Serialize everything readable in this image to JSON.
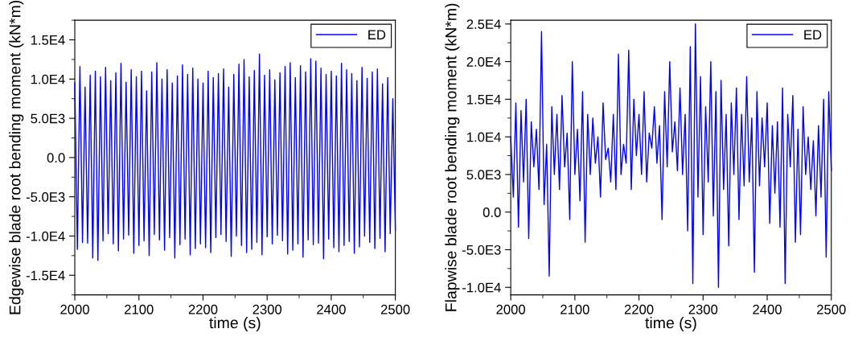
{
  "chart_data": [
    {
      "type": "line",
      "xlabel": "time (s)",
      "ylabel": "Edgewise blade root bending moment (kN*m)",
      "xlim": [
        2000,
        2500
      ],
      "xticks": [
        2000,
        2100,
        2200,
        2300,
        2400,
        2500
      ],
      "ylim": [
        -17500,
        17500
      ],
      "yticks": [
        {
          "value": -15000,
          "label": "-1.5E4"
        },
        {
          "value": -10000,
          "label": "-1.0E4"
        },
        {
          "value": -5000,
          "label": "-5.0E3"
        },
        {
          "value": 0,
          "label": "0.0"
        },
        {
          "value": 5000,
          "label": "5.0E3"
        },
        {
          "value": 10000,
          "label": "1.0E4"
        },
        {
          "value": 15000,
          "label": "1.5E4"
        }
      ],
      "legend": "top right",
      "grid": false,
      "marker": "none",
      "line_style": "solid",
      "series": [
        {
          "name": "ED",
          "color": "#0000ff",
          "x": [
            2000,
            2004,
            2008,
            2012,
            2016,
            2020,
            2024,
            2028,
            2032,
            2036,
            2040,
            2044,
            2048,
            2052,
            2056,
            2060,
            2064,
            2068,
            2072,
            2076,
            2080,
            2084,
            2088,
            2092,
            2096,
            2100,
            2104,
            2108,
            2112,
            2116,
            2120,
            2124,
            2128,
            2132,
            2136,
            2140,
            2144,
            2148,
            2152,
            2156,
            2160,
            2164,
            2168,
            2172,
            2176,
            2180,
            2184,
            2188,
            2192,
            2196,
            2200,
            2204,
            2208,
            2212,
            2216,
            2220,
            2224,
            2228,
            2232,
            2236,
            2240,
            2244,
            2248,
            2252,
            2256,
            2260,
            2264,
            2268,
            2272,
            2276,
            2280,
            2284,
            2288,
            2292,
            2296,
            2300,
            2304,
            2308,
            2312,
            2316,
            2320,
            2324,
            2328,
            2332,
            2336,
            2340,
            2344,
            2348,
            2352,
            2356,
            2360,
            2364,
            2368,
            2372,
            2376,
            2380,
            2384,
            2388,
            2392,
            2396,
            2400,
            2404,
            2408,
            2412,
            2416,
            2420,
            2424,
            2428,
            2432,
            2436,
            2440,
            2444,
            2448,
            2452,
            2456,
            2460,
            2464,
            2468,
            2472,
            2476,
            2480,
            2484,
            2488,
            2492,
            2496,
            2500
          ],
          "values": [
            9500,
            -11700,
            11600,
            -10800,
            9000,
            -10900,
            10500,
            -12800,
            11000,
            -13100,
            10300,
            -10600,
            11500,
            -9700,
            9800,
            -11000,
            10800,
            -11900,
            12000,
            -10400,
            9600,
            -9900,
            11200,
            -12200,
            10300,
            -11200,
            11000,
            -10600,
            8500,
            -12500,
            10900,
            -9800,
            12100,
            -10500,
            10000,
            -11800,
            11200,
            -10200,
            9500,
            -12800,
            10400,
            -11100,
            11800,
            -10400,
            10600,
            -12400,
            11400,
            -11600,
            10000,
            -11000,
            9500,
            -11500,
            11000,
            -12100,
            10200,
            -10200,
            10700,
            -9800,
            11300,
            -10700,
            9000,
            -12600,
            10600,
            -10000,
            11900,
            -11200,
            12500,
            -12100,
            10300,
            -11700,
            11100,
            -10800,
            13200,
            -12400,
            10500,
            -10100,
            11200,
            -11000,
            9900,
            -9900,
            10800,
            -10600,
            11600,
            -12300,
            12100,
            -11800,
            10200,
            -11000,
            11700,
            -12700,
            10900,
            -10500,
            12600,
            -11100,
            12300,
            -10900,
            11400,
            -12900,
            10600,
            -10400,
            11000,
            -11500,
            10400,
            -12000,
            12000,
            -11200,
            11200,
            -10700,
            10700,
            -12200,
            9800,
            -11400,
            11500,
            -10000,
            10100,
            -10800,
            10900,
            -11600,
            11300,
            -10300,
            9400,
            -12000,
            10200,
            -9700,
            7500,
            -9300
          ]
        }
      ]
    },
    {
      "type": "line",
      "xlabel": "time (s)",
      "ylabel": "Flapwise blade root bending moment (kN*m)",
      "xlim": [
        2000,
        2500
      ],
      "xticks": [
        2000,
        2100,
        2200,
        2300,
        2400,
        2500
      ],
      "ylim": [
        -11000,
        25500
      ],
      "yticks": [
        {
          "value": -10000,
          "label": "-1.0E4"
        },
        {
          "value": -5000,
          "label": "-5.0E3"
        },
        {
          "value": 0,
          "label": "0.0"
        },
        {
          "value": 5000,
          "label": "5.0E3"
        },
        {
          "value": 10000,
          "label": "1.0E4"
        },
        {
          "value": 15000,
          "label": "1.5E4"
        },
        {
          "value": 20000,
          "label": "2.0E4"
        },
        {
          "value": 25000,
          "label": "2.5E4"
        }
      ],
      "legend": "top right",
      "grid": false,
      "marker": "none",
      "line_style": "solid",
      "series": [
        {
          "name": "ED",
          "color": "#0000ff",
          "x": [
            2000,
            2004,
            2008,
            2012,
            2016,
            2020,
            2024,
            2028,
            2032,
            2036,
            2040,
            2044,
            2048,
            2052,
            2056,
            2060,
            2064,
            2068,
            2072,
            2076,
            2080,
            2084,
            2088,
            2092,
            2096,
            2100,
            2104,
            2108,
            2112,
            2116,
            2120,
            2124,
            2128,
            2132,
            2136,
            2140,
            2144,
            2148,
            2152,
            2156,
            2160,
            2164,
            2168,
            2172,
            2176,
            2180,
            2184,
            2188,
            2192,
            2196,
            2200,
            2204,
            2208,
            2212,
            2216,
            2220,
            2224,
            2228,
            2232,
            2236,
            2240,
            2244,
            2248,
            2252,
            2256,
            2260,
            2264,
            2268,
            2272,
            2276,
            2280,
            2284,
            2288,
            2292,
            2296,
            2300,
            2304,
            2308,
            2312,
            2316,
            2320,
            2324,
            2328,
            2332,
            2336,
            2340,
            2344,
            2348,
            2352,
            2356,
            2360,
            2364,
            2368,
            2372,
            2376,
            2380,
            2384,
            2388,
            2392,
            2396,
            2400,
            2404,
            2408,
            2412,
            2416,
            2420,
            2424,
            2428,
            2432,
            2436,
            2440,
            2444,
            2448,
            2452,
            2456,
            2460,
            2464,
            2468,
            2472,
            2476,
            2480,
            2484,
            2488,
            2492,
            2496,
            2500
          ],
          "values": [
            10000,
            2000,
            14500,
            -2000,
            13500,
            4000,
            15000,
            -3500,
            12000,
            6000,
            11000,
            3000,
            24000,
            1000,
            9000,
            -8500,
            14000,
            5000,
            13000,
            3000,
            15500,
            6000,
            10500,
            -1000,
            20000,
            5000,
            11000,
            1500,
            16000,
            -4000,
            13000,
            5000,
            12500,
            6500,
            10000,
            2000,
            14500,
            7000,
            8500,
            4000,
            13000,
            3000,
            21000,
            5000,
            9000,
            6500,
            21500,
            3000,
            15000,
            7500,
            13000,
            5000,
            16000,
            4000,
            10500,
            8500,
            14000,
            6500,
            11500,
            -1000,
            16000,
            6000,
            20000,
            8000,
            12000,
            5500,
            16500,
            5000,
            13000,
            -2500,
            22000,
            -9500,
            25000,
            2000,
            18000,
            -3000,
            14000,
            4000,
            20000,
            -500,
            16000,
            -10000,
            17500,
            3000,
            13000,
            -4500,
            14500,
            5000,
            16500,
            -1000,
            13000,
            3500,
            18000,
            4000,
            12500,
            -8000,
            16000,
            3500,
            12500,
            6000,
            14500,
            -1500,
            11500,
            2500,
            12000,
            -2000,
            16500,
            -9500,
            13000,
            6000,
            15500,
            -4000,
            11000,
            -3000,
            14000,
            5000,
            10000,
            3000,
            9500,
            -500,
            11500,
            2000,
            15000,
            -6000,
            16000,
            5500
          ]
        }
      ]
    }
  ]
}
